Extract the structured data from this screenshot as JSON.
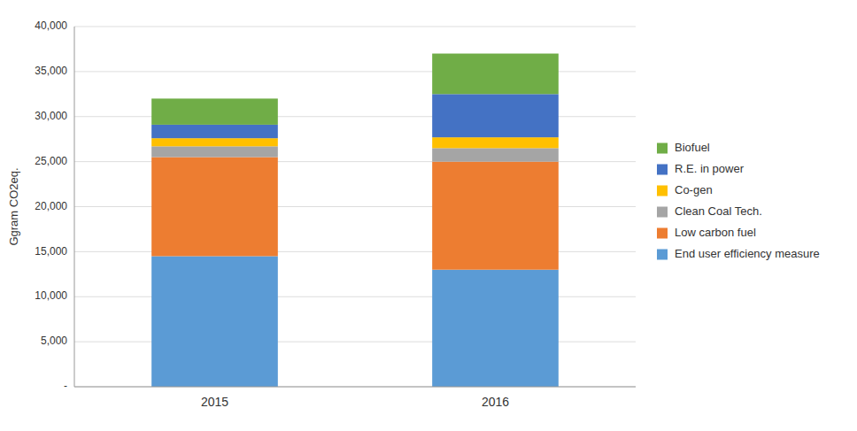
{
  "chart_data": {
    "type": "bar",
    "stacked": true,
    "categories": [
      "2015",
      "2016"
    ],
    "series": [
      {
        "name": "End user efficiency measure",
        "color": "#5B9BD5",
        "values": [
          14500,
          13000
        ]
      },
      {
        "name": "Low carbon fuel",
        "color": "#ED7D31",
        "values": [
          11000,
          12000
        ]
      },
      {
        "name": "Clean Coal Tech.",
        "color": "#A5A5A5",
        "values": [
          1200,
          1500
        ]
      },
      {
        "name": "Co-gen",
        "color": "#FFC000",
        "values": [
          900,
          1200
        ]
      },
      {
        "name": "R.E. in power",
        "color": "#4472C4",
        "values": [
          1500,
          4800
        ]
      },
      {
        "name": "Biofuel",
        "color": "#70AD47",
        "values": [
          2900,
          4500
        ]
      }
    ],
    "ylabel": "Ggram CO2eq.",
    "ylim": [
      0,
      40000
    ],
    "yticks": [
      {
        "value": 0,
        "label": "-"
      },
      {
        "value": 5000,
        "label": "5,000"
      },
      {
        "value": 10000,
        "label": "10,000"
      },
      {
        "value": 15000,
        "label": "15,000"
      },
      {
        "value": 20000,
        "label": "20,000"
      },
      {
        "value": 25000,
        "label": "25,000"
      },
      {
        "value": 30000,
        "label": "30,000"
      },
      {
        "value": 35000,
        "label": "35,000"
      },
      {
        "value": 40000,
        "label": "40,000"
      }
    ],
    "grid": true,
    "legend": "right"
  }
}
